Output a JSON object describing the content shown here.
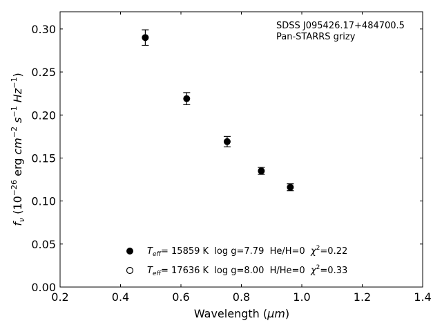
{
  "chart_data": {
    "type": "scatter",
    "annotation_lines": [
      "SDSS J095426.17+484700.5",
      "Pan-STARRS grizy"
    ],
    "xlabel": "Wavelength (",
    "xlabel_unit": "μm",
    "xlabel_close": ")",
    "ylabel": "(10",
    "ylabel_exp": "−26",
    "ylabel_mid": " erg ",
    "ylabel_cm": "cm",
    "ylabel_cm_exp": "−2",
    "ylabel_s": " s",
    "ylabel_s_exp": "−1",
    "ylabel_hz": " Hz",
    "ylabel_hz_exp": "−1",
    "ylabel_close": ")",
    "ylabel_symbol": "f",
    "ylabel_sub": "ν",
    "xlim": [
      0.2,
      1.4
    ],
    "ylim": [
      0.0,
      0.32
    ],
    "xticks": [
      0.2,
      0.4,
      0.6,
      0.8,
      1.0,
      1.2,
      1.4
    ],
    "xtick_labels": [
      "0.2",
      "0.4",
      "0.6",
      "0.8",
      "1.0",
      "1.2",
      "1.4"
    ],
    "yticks": [
      0.0,
      0.05,
      0.1,
      0.15,
      0.2,
      0.25,
      0.3
    ],
    "ytick_labels": [
      "0.00",
      "0.05",
      "0.10",
      "0.15",
      "0.20",
      "0.25",
      "0.30"
    ],
    "grid": false,
    "legend_placement": "lower-center",
    "points": [
      {
        "x": 0.482,
        "y": 0.29,
        "err": 0.009
      },
      {
        "x": 0.619,
        "y": 0.219,
        "err": 0.007
      },
      {
        "x": 0.753,
        "y": 0.169,
        "err": 0.006
      },
      {
        "x": 0.866,
        "y": 0.135,
        "err": 0.004
      },
      {
        "x": 0.962,
        "y": 0.116,
        "err": 0.004
      }
    ],
    "legend": [
      {
        "marker": "filled",
        "teff_symbol": "T",
        "teff_sub": "eff",
        "text": "= 15859 K  log g=7.79  He/H=0  ",
        "chi": "χ",
        "chi_exp": "2",
        "chi_val": "=0.22"
      },
      {
        "marker": "open",
        "teff_symbol": "T",
        "teff_sub": "eff",
        "text": "= 17636 K  log g=8.00  H/He=0  ",
        "chi": "χ",
        "chi_exp": "2",
        "chi_val": "=0.33"
      }
    ]
  }
}
